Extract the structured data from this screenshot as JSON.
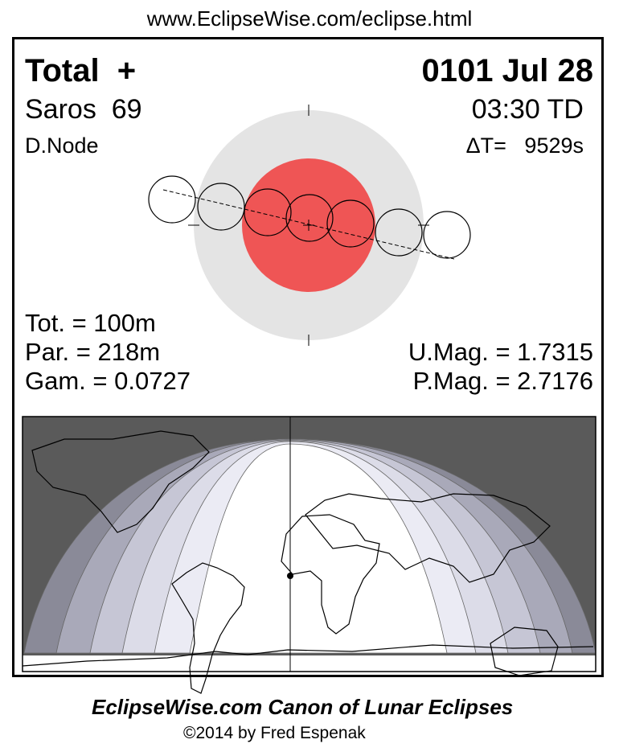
{
  "url": "www.EclipseWise.com/eclipse.html",
  "eclipse_type": "Total  +",
  "date": "0101 Jul 28",
  "saros": "Saros  69",
  "time": "03:30 TD",
  "node": "D.Node",
  "delta_t": "ΔT=   9529s",
  "tot": "Tot. = 100m",
  "par": "Par. = 218m",
  "gam": "Gam. = 0.0727",
  "umag": "U.Mag. = 1.7315",
  "pmag": "P.Mag. = 2.7176",
  "footer_title": "EclipseWise.com Canon of Lunar Eclipses",
  "copyright": "©2014 by Fred Espenak",
  "colors": {
    "penumbra": "#e4e4e4",
    "umbra": "#ef5555",
    "night": "#5a5a5a",
    "bands": [
      "#8a8a98",
      "#a9a9b9",
      "#c6c6d5",
      "#dcdce8",
      "#ebebf4",
      "#ffffff"
    ]
  }
}
